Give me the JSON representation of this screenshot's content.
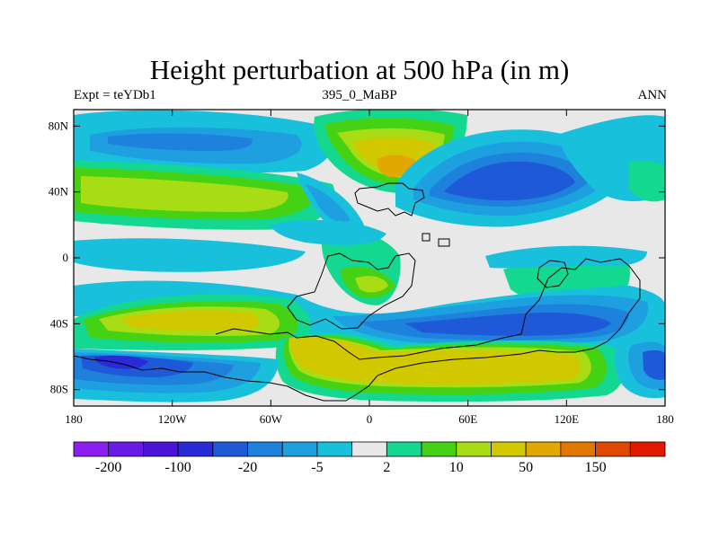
{
  "chart_data": {
    "type": "heatmap",
    "title": "Height perturbation at 500 hPa (in m)",
    "left_label": "Expt = teYDb1",
    "center_label": "395_0_MaBP",
    "right_label": "ANN",
    "x_ticks": [
      "180",
      "120W",
      "60W",
      "0",
      "60E",
      "120E",
      "180"
    ],
    "y_ticks": [
      "80N",
      "40N",
      "0",
      "40S",
      "80S"
    ],
    "x_range": [
      -180,
      180
    ],
    "y_range": [
      -90,
      90
    ],
    "colorbar": {
      "colors": [
        "#8b1ef0",
        "#6a1ae6",
        "#4a14d8",
        "#2a2ad6",
        "#1e5ad8",
        "#1e82dc",
        "#1ea0e0",
        "#18c0dc",
        "#e8e8e8",
        "#14d890",
        "#46d214",
        "#a8dc14",
        "#d2c800",
        "#e0a800",
        "#e07800",
        "#e04a00",
        "#e01a00"
      ],
      "labels": [
        "-200",
        "-100",
        "-20",
        "-5",
        "2",
        "10",
        "50",
        "150"
      ]
    },
    "regions": [
      {
        "name": "north-atlantic-negative",
        "lon": -40,
        "lat": 70,
        "level": "-5 to -20"
      },
      {
        "name": "northern-europe-positive",
        "lon": 20,
        "lat": 60,
        "level": "50 to 150"
      },
      {
        "name": "north-asia-negative",
        "lon": 75,
        "lat": 50,
        "level": "-20 to -100"
      },
      {
        "name": "north-pacific-positive",
        "lon": -140,
        "lat": 40,
        "level": "10 to 50"
      },
      {
        "name": "south-pacific-positive",
        "lon": -120,
        "lat": -40,
        "level": "10 to 50"
      },
      {
        "name": "south-indian-negative",
        "lon": 80,
        "lat": -42,
        "level": "-20 to -100"
      },
      {
        "name": "southern-ocean-positive",
        "lon": 70,
        "lat": -70,
        "level": "50 to 150"
      },
      {
        "name": "antarctic-pacific-negative",
        "lon": -150,
        "lat": -65,
        "level": "-100 to -200"
      }
    ]
  }
}
